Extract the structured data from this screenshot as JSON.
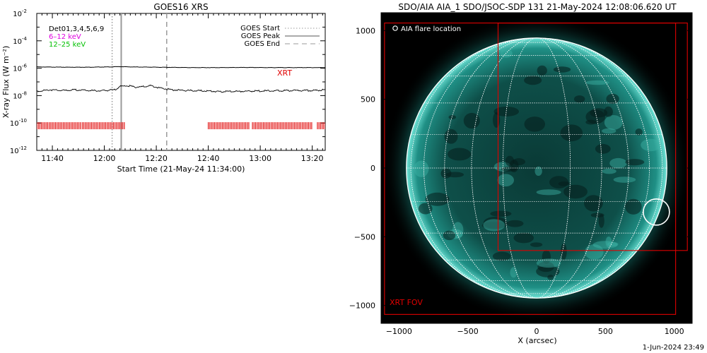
{
  "chart_data": [
    {
      "type": "line",
      "title": "GOES16 XRS",
      "xlabel": "Start Time (21-May-24 11:34:00)",
      "ylabel": "X-ray Flux (W m⁻²)",
      "y_scale": "log",
      "ylim_exp": [
        -12,
        -2
      ],
      "y_tick_exps": [
        -12,
        -10,
        -8,
        -6,
        -4,
        -2
      ],
      "x_tick_labels": [
        "11:40",
        "12:00",
        "12:20",
        "12:40",
        "13:00",
        "13:20"
      ],
      "x_tick_minutes": [
        6,
        26,
        46,
        66,
        86,
        106
      ],
      "xlim_minutes": [
        0,
        111
      ],
      "legend_left": [
        "Det01,3,4,5,6,9",
        "6–12 keV",
        "12–25 keV"
      ],
      "legend_left_colors": [
        "#000000",
        "#e000e0",
        "#00c000"
      ],
      "legend_right": [
        "GOES Start",
        "GOES Peak",
        "GOES End"
      ],
      "event_lines": [
        {
          "label": "GOES Start",
          "minute": 29.0,
          "style": "dotted",
          "color": "#9a9a9a"
        },
        {
          "label": "GOES Peak",
          "minute": 32.5,
          "style": "solid",
          "color": "#9a9a9a"
        },
        {
          "label": "GOES End",
          "minute": 50.0,
          "style": "dashed",
          "color": "#9a9a9a"
        }
      ],
      "series": [
        {
          "name": "long channel",
          "color": "#000000",
          "points": [
            [
              0,
              -5.9
            ],
            [
              10,
              -5.92
            ],
            [
              20,
              -5.92
            ],
            [
              28,
              -5.9
            ],
            [
              32,
              -5.88
            ],
            [
              36,
              -5.9
            ],
            [
              50,
              -5.93
            ],
            [
              60,
              -5.95
            ],
            [
              70,
              -5.95
            ],
            [
              80,
              -5.94
            ],
            [
              90,
              -5.95
            ],
            [
              100,
              -5.95
            ],
            [
              111,
              -5.95
            ]
          ]
        },
        {
          "name": "short channel",
          "color": "#000000",
          "points": [
            [
              0,
              -7.65
            ],
            [
              5,
              -7.55
            ],
            [
              10,
              -7.6
            ],
            [
              15,
              -7.55
            ],
            [
              20,
              -7.6
            ],
            [
              25,
              -7.62
            ],
            [
              30,
              -7.55
            ],
            [
              32,
              -7.3
            ],
            [
              35,
              -7.25
            ],
            [
              38,
              -7.35
            ],
            [
              42,
              -7.3
            ],
            [
              44,
              -7.25
            ],
            [
              47,
              -7.4
            ],
            [
              52,
              -7.55
            ],
            [
              58,
              -7.6
            ],
            [
              65,
              -7.62
            ],
            [
              70,
              -7.68
            ],
            [
              80,
              -7.65
            ],
            [
              90,
              -7.62
            ],
            [
              100,
              -7.6
            ],
            [
              106,
              -7.6
            ],
            [
              111,
              -7.55
            ]
          ]
        }
      ],
      "xrt_label": "XRT",
      "xrt_color": "#e00000",
      "xrt_level_exp": -10.2,
      "xrt_intervals": [
        [
          0,
          17
        ],
        [
          17.5,
          34
        ],
        [
          66,
          82
        ],
        [
          83,
          106
        ],
        [
          108,
          111
        ]
      ]
    },
    {
      "type": "image",
      "title": "SDO/AIA AIA_1 SDO/JSOC-SDP 131 21-May-2024 12:08:06.620 UT",
      "xlabel": "X (arcsec)",
      "xlim": [
        -1130,
        1130
      ],
      "ylim": [
        -1130,
        1130
      ],
      "x_ticks": [
        -1000,
        -500,
        0,
        500,
        1000
      ],
      "y_ticks": [
        -1000,
        -500,
        0,
        500,
        1000
      ],
      "solar_radius_arcsec": 946,
      "grid": true,
      "grid_spacing_deg": 15,
      "legend": "AIA flare location",
      "flare_location": [
        870,
        -320
      ],
      "flare_radius_arcsec": 95,
      "fov_label": "XRT FOV",
      "fov_color": "#e00000",
      "fov_inner": [
        [
          -280,
          1055
        ],
        [
          1095,
          -600
        ]
      ],
      "fov_outer": [
        [
          -1105,
          1055
        ],
        [
          1010,
          -1065
        ]
      ]
    }
  ],
  "timestamp": "1-Jun-2024 23:49"
}
